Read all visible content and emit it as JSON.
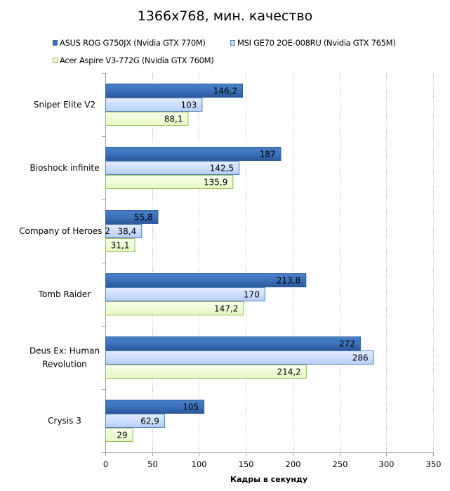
{
  "chart_data": {
    "type": "bar",
    "orientation": "horizontal",
    "title": "1366x768, мин. качество",
    "xlabel": "Кадры  в секунду",
    "ylabel": "",
    "xlim": [
      0,
      350
    ],
    "xticks": [
      0,
      50,
      100,
      150,
      200,
      250,
      300,
      350
    ],
    "grid": "vertical dotted",
    "legend_position": "top",
    "categories": [
      "Sniper Elite V2",
      "Bioshock infinite",
      "Company of Heroes 2",
      "Tomb Raider",
      "Deus Ex: Human Revolution",
      "Crysis 3"
    ],
    "series": [
      {
        "name": "ASUS ROG G750JX (Nvidia GTX 770M)",
        "color": "#3a6fb5",
        "values": [
          146.2,
          187,
          55.8,
          213.8,
          272,
          105
        ],
        "labels": [
          "146,2",
          "187",
          "55,8",
          "213,8",
          "272",
          "105"
        ]
      },
      {
        "name": "MSI GE70 2OE-008RU (Nvidia GTX 765M)",
        "color": "#c9dcfb",
        "values": [
          103,
          142.5,
          38.4,
          170,
          286,
          62.9
        ],
        "labels": [
          "103",
          "142,5",
          "38,4",
          "170",
          "286",
          "62,9"
        ]
      },
      {
        "name": "Acer Aspire V3-772G (Nvidia GTX 760M)",
        "color": "#eefcd0",
        "values": [
          88.1,
          135.9,
          31.1,
          147.2,
          214.2,
          29
        ],
        "labels": [
          "88,1",
          "135,9",
          "31,1",
          "147,2",
          "214,2",
          "29"
        ]
      }
    ]
  },
  "legend": [
    {
      "label": "ASUS ROG G750JX (Nvidia GTX 770M)"
    },
    {
      "label": "MSI GE70 2OE-008RU (Nvidia GTX 765M)"
    },
    {
      "label": "Acer Aspire V3-772G (Nvidia GTX 760M)"
    }
  ]
}
